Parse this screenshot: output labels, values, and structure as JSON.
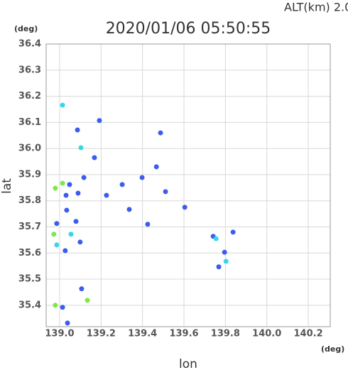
{
  "chart_data": {
    "type": "scatter",
    "title": "2020/01/06 05:50:55",
    "subtitle": "ALT(km) 2.0",
    "x_unit": "(deg)",
    "y_unit": "(deg)",
    "x_label": "lon",
    "y_label": "lat",
    "xlim": [
      138.935,
      140.306
    ],
    "ylim": [
      35.318,
      36.4
    ],
    "xticks": [
      {
        "value": 139,
        "label": "139.0"
      },
      139.2,
      139.4,
      139.6,
      139.8,
      {
        "value": 140,
        "label": "140.0"
      },
      140.2
    ],
    "yticks": [
      35.4,
      35.5,
      35.6,
      35.7,
      35.8,
      35.9,
      {
        "value": 36,
        "label": "36.0"
      },
      36.1,
      36.2,
      36.3,
      36.4
    ],
    "grid": true,
    "series": [
      {
        "color": "#3b5cf0",
        "x": [
          139.086,
          139.192,
          139.487,
          139.168,
          139.117,
          139.089,
          139.031,
          139.048,
          139.034,
          139.079,
          139.027,
          139.099,
          139.014,
          139.106,
          139.398,
          139.302,
          139.467,
          139.511,
          139.604,
          139.425,
          139.741,
          139.796,
          139.768,
          139.837,
          139.226,
          139.336,
          139.038,
          138.986
        ],
        "values": [
          36.071,
          36.107,
          36.06,
          35.965,
          35.889,
          35.829,
          35.821,
          35.862,
          35.764,
          35.721,
          35.609,
          35.642,
          35.392,
          35.463,
          35.889,
          35.862,
          35.93,
          35.835,
          35.775,
          35.71,
          35.664,
          35.603,
          35.547,
          35.68,
          35.821,
          35.767,
          35.332,
          35.713
        ]
      },
      {
        "color": "#36d8e8",
        "x": [
          139.014,
          139.055,
          138.986,
          139.803,
          139.103,
          139.755
        ],
        "values": [
          36.166,
          35.672,
          35.631,
          35.568,
          36.003,
          35.655
        ]
      },
      {
        "color": "#7ee84a",
        "x": [
          138.979,
          138.979,
          139.134,
          139.014,
          138.972
        ],
        "values": [
          35.848,
          35.4,
          35.419,
          35.867,
          35.672
        ]
      }
    ]
  }
}
